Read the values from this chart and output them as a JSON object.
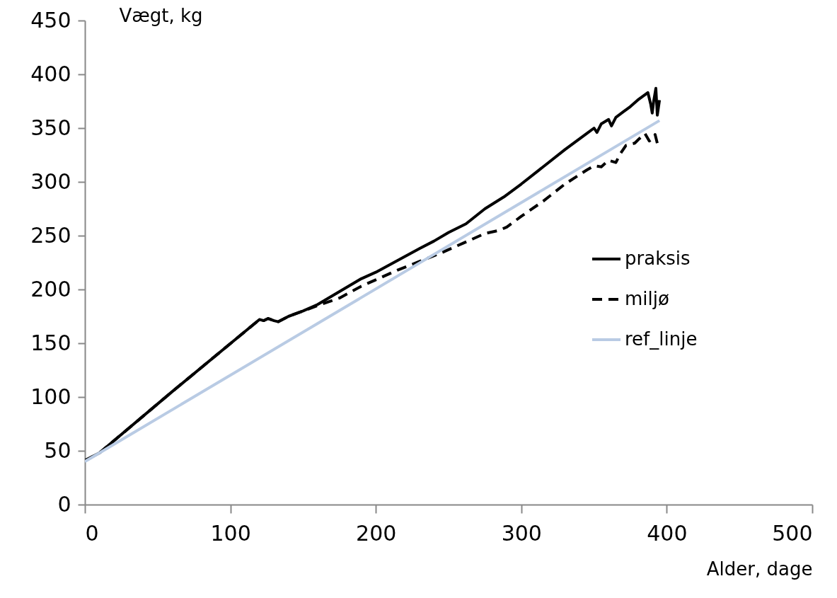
{
  "chart_data": {
    "type": "line",
    "xlabel": "Alder, dage",
    "ylabel": "Vægt, kg",
    "xlim": [
      0,
      500
    ],
    "xticks": [
      0,
      100,
      200,
      300,
      400,
      500
    ],
    "ylim": [
      0,
      450
    ],
    "yticks": [
      0,
      50,
      100,
      150,
      200,
      250,
      300,
      350,
      400,
      450
    ],
    "grid": false,
    "legend": "right",
    "marker": "none",
    "series": [
      {
        "name": "praksis",
        "color": "#000000",
        "line_style": "solid",
        "x": [
          0,
          10,
          60,
          120,
          123,
          126,
          130,
          133,
          140,
          150,
          160,
          175,
          190,
          200,
          215,
          230,
          240,
          250,
          262,
          275,
          288,
          300,
          315,
          330,
          345,
          350,
          352,
          355,
          360,
          362,
          365,
          370,
          375,
          380,
          387,
          389,
          390,
          391,
          392.5,
          393.5,
          395
        ],
        "values": [
          41,
          48,
          105,
          172,
          171,
          173,
          171,
          170,
          175,
          180,
          186,
          198,
          210,
          216,
          227,
          238,
          245,
          253,
          261,
          275,
          286,
          298,
          314,
          330,
          345,
          350,
          346,
          354,
          358,
          352,
          360,
          365,
          370,
          376,
          383,
          372,
          364,
          375,
          387,
          362,
          376
        ]
      },
      {
        "name": "miljø",
        "color": "#000000",
        "line_style": "dashed",
        "x": [
          0,
          10,
          60,
          120,
          123,
          126,
          130,
          133,
          140,
          150,
          160,
          175,
          190,
          200,
          215,
          230,
          245,
          260,
          275,
          285,
          290,
          300,
          315,
          330,
          345,
          350,
          355,
          360,
          365,
          368,
          372,
          378,
          381,
          385,
          388,
          390,
          392,
          394,
          395
        ],
        "values": [
          41,
          48,
          105,
          172,
          171,
          173,
          171,
          170,
          175,
          180,
          185,
          192,
          203,
          209,
          218,
          226,
          234,
          243,
          252,
          255,
          258,
          268,
          282,
          298,
          311,
          315,
          314,
          320,
          318,
          326,
          334,
          336,
          340,
          345,
          338,
          340,
          344,
          333,
          334
        ]
      },
      {
        "name": "ref_linje",
        "color": "#b9cbe4",
        "line_style": "solid",
        "x": [
          0,
          395
        ],
        "values": [
          40,
          357
        ]
      }
    ]
  }
}
